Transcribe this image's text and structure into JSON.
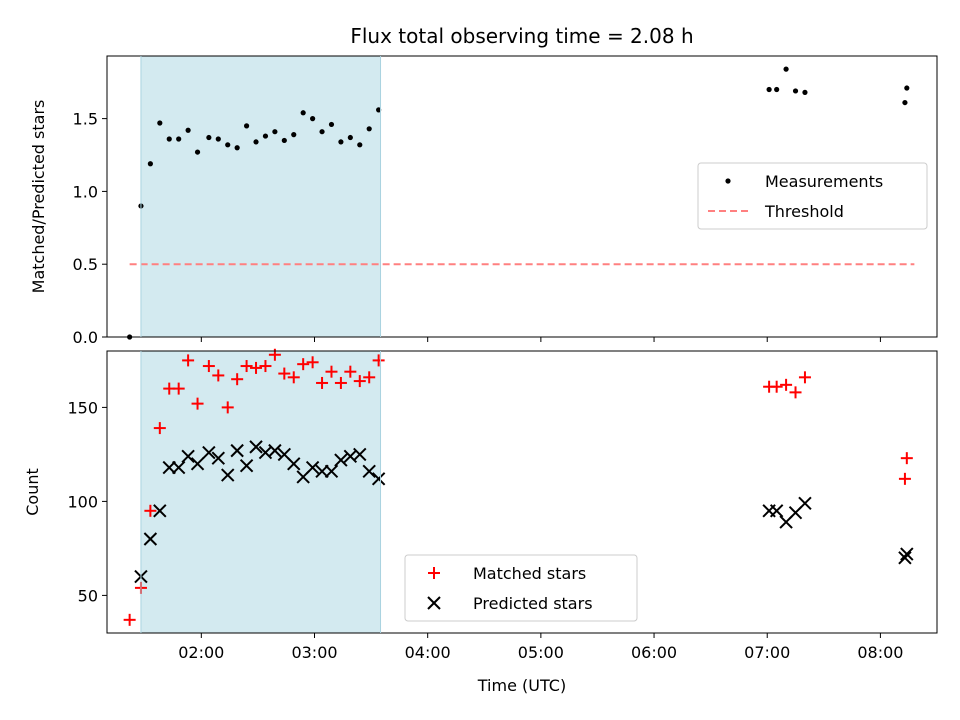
{
  "chart_data": [
    {
      "type": "scatter",
      "title": "Flux total observing time = 2.08 h",
      "xlabel": "",
      "ylabel": "Matched/Predicted stars",
      "xlim": [
        "01:10",
        "08:30"
      ],
      "ylim": [
        0,
        1.93
      ],
      "yticks": [
        "0.0",
        "0.5",
        "1.0",
        "1.5"
      ],
      "grid": false,
      "legend": "center-right",
      "shaded_span": {
        "start": "01:28",
        "end": "03:35",
        "color": "#d3eaf0"
      },
      "series": [
        {
          "name": "Measurements",
          "marker": "dot",
          "color": "#000000",
          "points": [
            {
              "x": "01:22",
              "y": 0.0
            },
            {
              "x": "01:28",
              "y": 0.9
            },
            {
              "x": "01:33",
              "y": 1.19
            },
            {
              "x": "01:38",
              "y": 1.47
            },
            {
              "x": "01:43",
              "y": 1.36
            },
            {
              "x": "01:48",
              "y": 1.36
            },
            {
              "x": "01:53",
              "y": 1.42
            },
            {
              "x": "01:58",
              "y": 1.27
            },
            {
              "x": "02:04",
              "y": 1.37
            },
            {
              "x": "02:09",
              "y": 1.36
            },
            {
              "x": "02:14",
              "y": 1.32
            },
            {
              "x": "02:19",
              "y": 1.3
            },
            {
              "x": "02:24",
              "y": 1.45
            },
            {
              "x": "02:29",
              "y": 1.34
            },
            {
              "x": "02:34",
              "y": 1.38
            },
            {
              "x": "02:39",
              "y": 1.41
            },
            {
              "x": "02:44",
              "y": 1.35
            },
            {
              "x": "02:49",
              "y": 1.39
            },
            {
              "x": "02:54",
              "y": 1.54
            },
            {
              "x": "02:59",
              "y": 1.5
            },
            {
              "x": "03:04",
              "y": 1.41
            },
            {
              "x": "03:09",
              "y": 1.46
            },
            {
              "x": "03:14",
              "y": 1.34
            },
            {
              "x": "03:19",
              "y": 1.37
            },
            {
              "x": "03:24",
              "y": 1.32
            },
            {
              "x": "03:29",
              "y": 1.43
            },
            {
              "x": "03:34",
              "y": 1.56
            },
            {
              "x": "07:01",
              "y": 1.7
            },
            {
              "x": "07:05",
              "y": 1.7
            },
            {
              "x": "07:10",
              "y": 1.84
            },
            {
              "x": "07:15",
              "y": 1.69
            },
            {
              "x": "07:20",
              "y": 1.68
            },
            {
              "x": "08:13",
              "y": 1.61
            },
            {
              "x": "08:14",
              "y": 1.71
            }
          ]
        },
        {
          "name": "Threshold",
          "style": "dashed",
          "color": "#ff8080",
          "points": [
            {
              "x": "01:22",
              "y": 0.5
            },
            {
              "x": "08:18",
              "y": 0.5
            }
          ]
        }
      ]
    },
    {
      "type": "scatter",
      "title": "",
      "xlabel": "Time (UTC)",
      "ylabel": "Count",
      "xlim": [
        "01:10",
        "08:30"
      ],
      "ylim": [
        30,
        180
      ],
      "xticks": [
        "02:00",
        "03:00",
        "04:00",
        "05:00",
        "06:00",
        "07:00",
        "08:00"
      ],
      "yticks": [
        "50",
        "100",
        "150"
      ],
      "grid": false,
      "legend": "bottom-center",
      "shaded_span": {
        "start": "01:28",
        "end": "03:35",
        "color": "#d3eaf0"
      },
      "series": [
        {
          "name": "Matched stars",
          "marker": "plus",
          "color": "#ff0000",
          "points": [
            {
              "x": "01:22",
              "y": 37
            },
            {
              "x": "01:28",
              "y": 54
            },
            {
              "x": "01:33",
              "y": 95
            },
            {
              "x": "01:38",
              "y": 139
            },
            {
              "x": "01:43",
              "y": 160
            },
            {
              "x": "01:48",
              "y": 160
            },
            {
              "x": "01:53",
              "y": 175
            },
            {
              "x": "01:58",
              "y": 152
            },
            {
              "x": "02:04",
              "y": 172
            },
            {
              "x": "02:09",
              "y": 167
            },
            {
              "x": "02:14",
              "y": 150
            },
            {
              "x": "02:19",
              "y": 165
            },
            {
              "x": "02:24",
              "y": 172
            },
            {
              "x": "02:29",
              "y": 171
            },
            {
              "x": "02:34",
              "y": 172
            },
            {
              "x": "02:39",
              "y": 178
            },
            {
              "x": "02:44",
              "y": 168
            },
            {
              "x": "02:49",
              "y": 166
            },
            {
              "x": "02:54",
              "y": 173
            },
            {
              "x": "02:59",
              "y": 174
            },
            {
              "x": "03:04",
              "y": 163
            },
            {
              "x": "03:09",
              "y": 169
            },
            {
              "x": "03:14",
              "y": 163
            },
            {
              "x": "03:19",
              "y": 169
            },
            {
              "x": "03:24",
              "y": 164
            },
            {
              "x": "03:29",
              "y": 166
            },
            {
              "x": "03:34",
              "y": 175
            },
            {
              "x": "07:01",
              "y": 161
            },
            {
              "x": "07:05",
              "y": 161
            },
            {
              "x": "07:10",
              "y": 162
            },
            {
              "x": "07:15",
              "y": 158
            },
            {
              "x": "07:20",
              "y": 166
            },
            {
              "x": "08:13",
              "y": 112
            },
            {
              "x": "08:14",
              "y": 123
            }
          ]
        },
        {
          "name": "Predicted stars",
          "marker": "x",
          "color": "#000000",
          "points": [
            {
              "x": "01:28",
              "y": 60
            },
            {
              "x": "01:33",
              "y": 80
            },
            {
              "x": "01:38",
              "y": 95
            },
            {
              "x": "01:43",
              "y": 118
            },
            {
              "x": "01:48",
              "y": 118
            },
            {
              "x": "01:53",
              "y": 124
            },
            {
              "x": "01:58",
              "y": 120
            },
            {
              "x": "02:04",
              "y": 126
            },
            {
              "x": "02:09",
              "y": 123
            },
            {
              "x": "02:14",
              "y": 114
            },
            {
              "x": "02:19",
              "y": 127
            },
            {
              "x": "02:24",
              "y": 119
            },
            {
              "x": "02:29",
              "y": 129
            },
            {
              "x": "02:34",
              "y": 126
            },
            {
              "x": "02:39",
              "y": 127
            },
            {
              "x": "02:44",
              "y": 125
            },
            {
              "x": "02:49",
              "y": 120
            },
            {
              "x": "02:54",
              "y": 113
            },
            {
              "x": "02:59",
              "y": 118
            },
            {
              "x": "03:04",
              "y": 116
            },
            {
              "x": "03:09",
              "y": 116
            },
            {
              "x": "03:14",
              "y": 122
            },
            {
              "x": "03:19",
              "y": 124
            },
            {
              "x": "03:24",
              "y": 125
            },
            {
              "x": "03:29",
              "y": 116
            },
            {
              "x": "03:34",
              "y": 112
            },
            {
              "x": "07:01",
              "y": 95
            },
            {
              "x": "07:05",
              "y": 95
            },
            {
              "x": "07:10",
              "y": 89
            },
            {
              "x": "07:15",
              "y": 94
            },
            {
              "x": "07:20",
              "y": 99
            },
            {
              "x": "08:13",
              "y": 70
            },
            {
              "x": "08:14",
              "y": 72
            }
          ]
        }
      ]
    }
  ]
}
